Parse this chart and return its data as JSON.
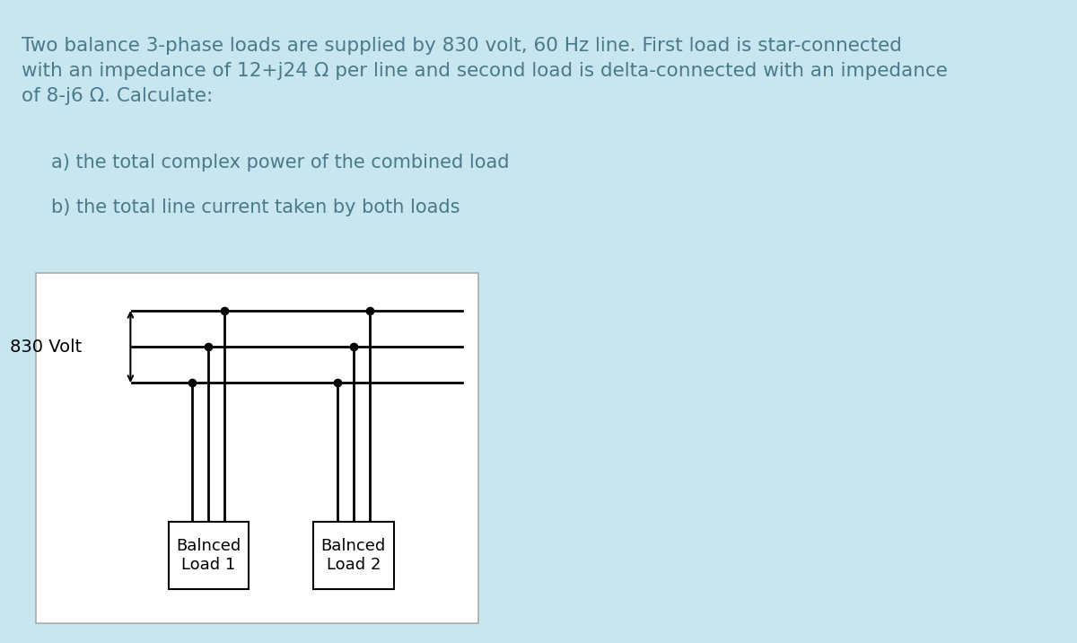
{
  "bg_color": "#c8e6f0",
  "diagram_bg": "#ffffff",
  "text_color": "#4a7a8a",
  "diagram_text_color": "#000000",
  "title_text": "Two balance 3-phase loads are supplied by 830 volt, 60 Hz line. First load is star-connected\nwith an impedance of 12+j24 Ω per line and second load is delta-connected with an impedance\nof 8-j6 Ω. Calculate:",
  "item_a": "a) the total complex power of the combined load",
  "item_b": "b) the total line current taken by both loads",
  "volt_label": "830 Volt",
  "load1_label": "Balnced\nLoad 1",
  "load2_label": "Balnced\nLoad 2",
  "font_size_title": 15.5,
  "font_size_items": 15,
  "font_size_diagram": 13
}
